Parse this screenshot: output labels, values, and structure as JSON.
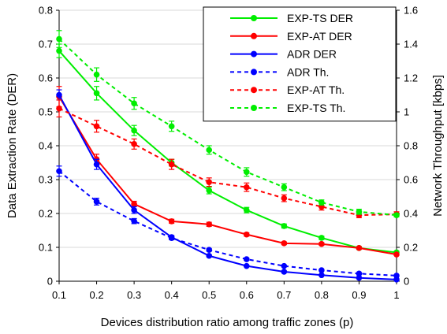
{
  "chart_data": {
    "type": "line",
    "x": [
      0.1,
      0.2,
      0.3,
      0.4,
      0.5,
      0.6,
      0.7,
      0.8,
      0.9,
      1
    ],
    "x_tick_labels": [
      "0.1",
      "0.2",
      "0.3",
      "0.4",
      "0.5",
      "0.6",
      "0.7",
      "0.8",
      "0.9",
      "1"
    ],
    "xlabel": "Devices distribution ratio among traffic zones (p)",
    "ylabel_left": "Data Extraction Rate (DER)",
    "ylabel_right": "Network Throughput [kbps]",
    "ylim_left": [
      0,
      0.8
    ],
    "ylim_right": [
      0,
      1.6
    ],
    "y_tick_labels_left": [
      "0",
      "0.1",
      "0.2",
      "0.3",
      "0.4",
      "0.5",
      "0.6",
      "0.7",
      "0.8"
    ],
    "y_tick_labels_right": [
      "0",
      "0.2",
      "0.4",
      "0.6",
      "0.8",
      "1",
      "1.2",
      "1.4",
      "1.6"
    ],
    "grid": "horizontal",
    "legend_position": "top-right",
    "series": [
      {
        "name": "EXP-TS DER",
        "axis": "left",
        "color": "#00ee00",
        "dashed": false,
        "values": [
          0.68,
          0.555,
          0.445,
          0.35,
          0.268,
          0.21,
          0.163,
          0.128,
          0.098,
          0.085
        ],
        "errors": [
          0.02,
          0.02,
          0.015,
          0.01,
          0.01,
          0.008,
          0.006,
          0.005,
          0.004,
          0.004
        ]
      },
      {
        "name": "EXP-AT DER",
        "axis": "left",
        "color": "#ff0000",
        "dashed": false,
        "values": [
          0.545,
          0.36,
          0.228,
          0.177,
          0.168,
          0.138,
          0.112,
          0.11,
          0.098,
          0.079
        ],
        "errors": [
          0.03,
          0.015,
          0.008,
          0.006,
          0.006,
          0.005,
          0.004,
          0.004,
          0.003,
          0.003
        ]
      },
      {
        "name": "ADR DER",
        "axis": "left",
        "color": "#0000ff",
        "dashed": false,
        "values": [
          0.55,
          0.345,
          0.21,
          0.13,
          0.075,
          0.045,
          0.028,
          0.018,
          0.01,
          0.005
        ],
        "errors": [
          0.015,
          0.015,
          0.01,
          0.005,
          0.003,
          0.002,
          0.002,
          0.001,
          0.001,
          0.001
        ]
      },
      {
        "name": "ADR Th.",
        "axis": "right",
        "color": "#0000ff",
        "dashed": true,
        "values": [
          0.65,
          0.47,
          0.355,
          0.255,
          0.185,
          0.13,
          0.09,
          0.065,
          0.045,
          0.033
        ],
        "errors": [
          0.03,
          0.02,
          0.015,
          0.01,
          0.008,
          0.006,
          0.004,
          0.003,
          0.003,
          0.002
        ]
      },
      {
        "name": "EXP-AT Th.",
        "axis": "right",
        "color": "#ff0000",
        "dashed": true,
        "values": [
          1.02,
          0.915,
          0.81,
          0.69,
          0.585,
          0.555,
          0.49,
          0.44,
          0.39,
          0.395
        ],
        "errors": [
          0.05,
          0.035,
          0.03,
          0.03,
          0.025,
          0.025,
          0.02,
          0.02,
          0.015,
          0.015
        ]
      },
      {
        "name": "EXP-TS Th.",
        "axis": "right",
        "color": "#00ee00",
        "dashed": true,
        "values": [
          1.43,
          1.22,
          1.05,
          0.915,
          0.775,
          0.645,
          0.555,
          0.465,
          0.41,
          0.39
        ],
        "errors": [
          0.05,
          0.04,
          0.035,
          0.03,
          0.025,
          0.025,
          0.02,
          0.015,
          0.015,
          0.01
        ]
      }
    ],
    "legend_order": [
      "EXP-TS DER",
      "EXP-AT DER",
      "ADR DER",
      "ADR Th.",
      "EXP-AT Th.",
      "EXP-TS Th."
    ]
  }
}
